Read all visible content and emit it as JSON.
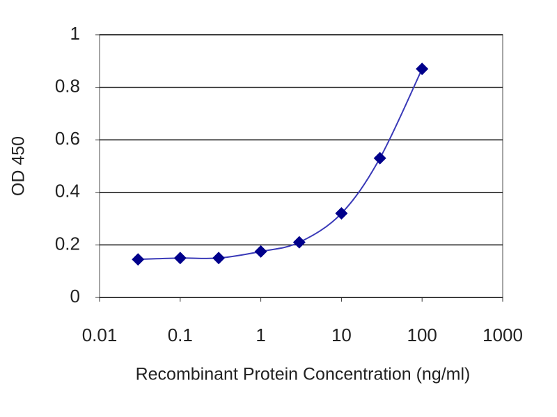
{
  "chart_data": {
    "type": "line",
    "x_label": "Recombinant Protein Concentration (ng/ml)",
    "y_label": "OD 450",
    "x": [
      0.03,
      0.1,
      0.3,
      1,
      3,
      10,
      30,
      100
    ],
    "values": [
      0.145,
      0.15,
      0.15,
      0.175,
      0.21,
      0.32,
      0.53,
      0.87
    ],
    "color": "#00008b",
    "line_color": "#3a3ab8",
    "xscale": "log",
    "xlim": [
      0.01,
      1000
    ],
    "xticks": [
      0.01,
      0.1,
      1,
      10,
      100,
      1000
    ],
    "ylim": [
      0,
      1
    ],
    "yticks": [
      0,
      0.2,
      0.4,
      0.6,
      0.8,
      1
    ],
    "grid": true
  }
}
